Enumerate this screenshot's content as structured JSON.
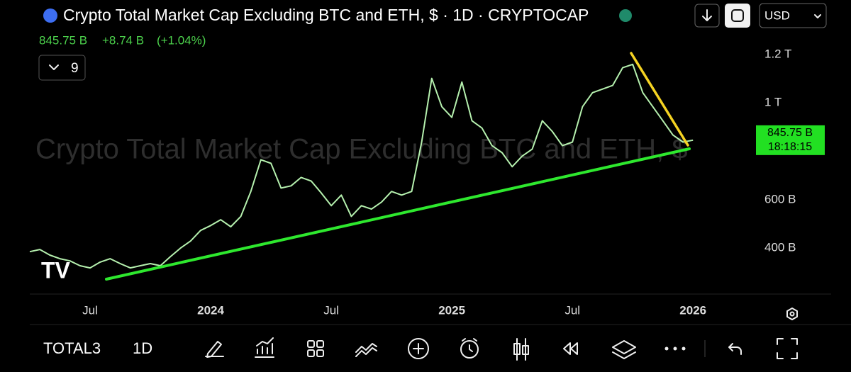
{
  "chart_data": {
    "type": "line",
    "title": "Crypto Total Market Cap Excluding BTC and ETH, $ · 1D · CRYPTOCAP",
    "watermark": "Crypto Total Market Cap Excluding BTC and ETH, $",
    "price": "845.75 B",
    "change": "+8.74 B",
    "change_pct": "(+1.04%)",
    "indicator_count": "9",
    "currency": "USD",
    "countdown": "18:18:15",
    "symbol": "TOTAL3",
    "interval": "1D",
    "color": "#b5f0ae",
    "categories": [
      null,
      null,
      null,
      null,
      null,
      null,
      "Jul",
      null,
      null,
      null,
      null,
      null,
      null,
      null,
      null,
      null,
      null,
      null,
      "2024",
      null,
      null,
      null,
      null,
      null,
      null,
      null,
      null,
      null,
      null,
      null,
      "Jul",
      null,
      null,
      null,
      null,
      null,
      null,
      null,
      null,
      null,
      null,
      null,
      "2025",
      null,
      null,
      null,
      null,
      null,
      null,
      null,
      null,
      null,
      null,
      null,
      "Jul",
      null,
      null,
      null,
      null,
      null,
      null,
      null,
      null,
      null,
      null,
      null,
      "2026"
    ],
    "values": [
      385,
      394,
      371,
      356,
      347,
      327,
      318,
      342,
      356,
      336,
      318,
      327,
      336,
      327,
      365,
      400,
      429,
      473,
      493,
      517,
      488,
      531,
      634,
      765,
      750,
      648,
      657,
      692,
      677,
      628,
      575,
      619,
      531,
      575,
      561,
      590,
      634,
      619,
      634,
      838,
      1101,
      984,
      940,
      1086,
      926,
      896,
      823,
      794,
      736,
      780,
      809,
      926,
      882,
      823,
      838,
      984,
      1042,
      1057,
      1072,
      1145,
      1159,
      1042,
      984,
      926,
      867,
      838,
      845.75
    ],
    "ylim": [
      210,
      1220
    ],
    "yticks": [
      {
        "value": 400,
        "label": "400 B"
      },
      {
        "value": 600,
        "label": "600 B"
      },
      {
        "value": 1000,
        "label": "1 T"
      },
      {
        "value": 1200,
        "label": "1.2 T"
      }
    ]
  }
}
